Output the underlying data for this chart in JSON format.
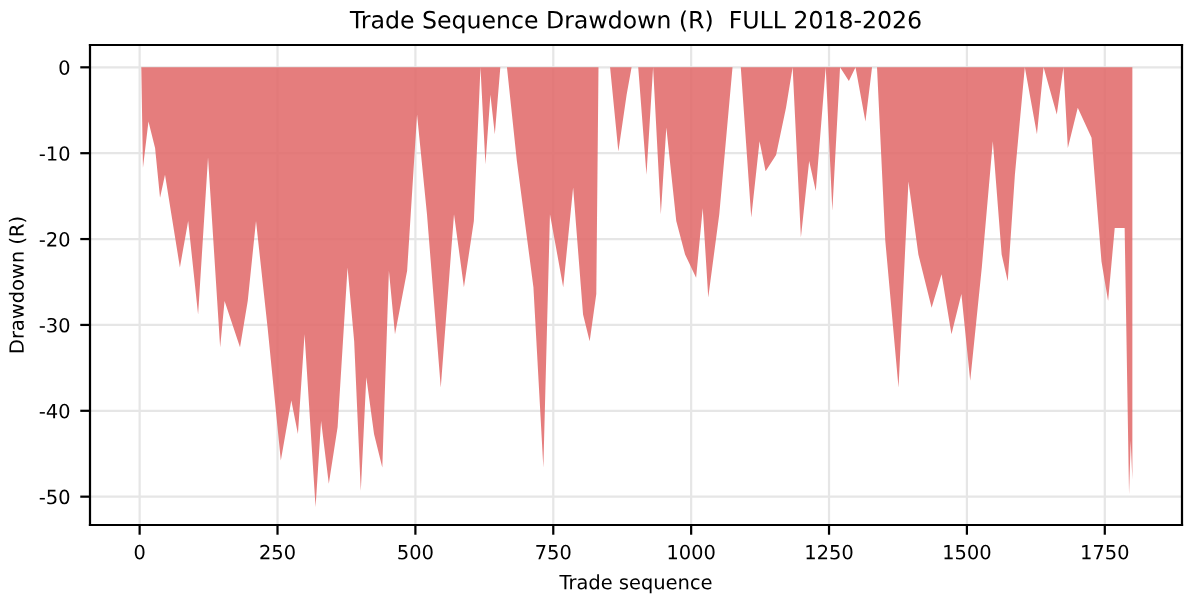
{
  "chart_data": {
    "type": "area",
    "title": "Trade Sequence Drawdown (R)  FULL 2018-2026",
    "xlabel": "Trade sequence",
    "ylabel": "Drawdown (R)",
    "x": [
      3,
      6,
      16,
      28,
      37,
      46,
      73,
      88,
      106,
      124,
      146,
      154,
      182,
      196,
      211,
      232,
      256,
      275,
      287,
      299,
      319,
      329,
      343,
      359,
      377,
      389,
      401,
      411,
      425,
      440,
      452,
      463,
      485,
      503,
      521,
      546,
      570,
      588,
      606,
      618,
      627,
      636,
      644,
      654,
      666,
      684,
      714,
      732,
      744,
      768,
      786,
      804,
      816,
      828,
      832,
      853,
      868,
      883,
      892,
      904,
      919,
      931,
      945,
      955,
      973,
      989,
      1009,
      1021,
      1031,
      1051,
      1075,
      1090,
      1109,
      1124,
      1135,
      1154,
      1172,
      1184,
      1199,
      1214,
      1226,
      1244,
      1256,
      1270,
      1286,
      1298,
      1316,
      1328,
      1337,
      1352,
      1376,
      1394,
      1412,
      1436,
      1454,
      1472,
      1490,
      1506,
      1527,
      1547,
      1563,
      1574,
      1587,
      1605,
      1627,
      1639,
      1663,
      1675,
      1683,
      1701,
      1726,
      1744,
      1756,
      1768,
      1786,
      1794,
      1797,
      1800
    ],
    "series": [
      {
        "color": "#e06666",
        "values": [
          0,
          -11.7,
          -6.3,
          -9.4,
          -15.2,
          -12.5,
          -23.3,
          -17.9,
          -28.8,
          -10.5,
          -32.6,
          -27.2,
          -32.6,
          -27.2,
          -17.9,
          -30.3,
          -45.8,
          -38.8,
          -42.7,
          -31.1,
          -51.2,
          -41.2,
          -48.5,
          -41.9,
          -23.3,
          -31.9,
          -49.3,
          -36.1,
          -42.7,
          -46.6,
          -23.7,
          -31.1,
          -23.7,
          -5.5,
          -17.1,
          -37.3,
          -17.1,
          -25.6,
          -17.9,
          0,
          -11.3,
          -3.2,
          -7.8,
          0,
          0,
          -10.9,
          -25.6,
          -46.6,
          -17.1,
          -25.6,
          -14,
          -28.8,
          -31.9,
          -26.4,
          0,
          0,
          -9.8,
          -3.2,
          0,
          0,
          -12.5,
          0,
          -17.1,
          -7,
          -17.9,
          -21.8,
          -24.5,
          -16.4,
          -26.8,
          -17.1,
          0,
          0,
          -17.5,
          -8.6,
          -12.1,
          -10.2,
          -4.7,
          0,
          -19.8,
          -10.9,
          -14.4,
          0,
          -16.7,
          0,
          -1.6,
          0,
          -6.3,
          0,
          0,
          -20.2,
          -37.3,
          -13.3,
          -21.8,
          -28,
          -24.1,
          -31.1,
          -26.4,
          -36.5,
          -23.3,
          -8.6,
          -21.8,
          -24.9,
          -12.5,
          0,
          -7.8,
          0,
          -5.5,
          0,
          -9.4,
          -4.7,
          -8.2,
          -22.6,
          -27.2,
          -18.7,
          -18.7,
          -49.7,
          -43.5,
          -48
        ]
      }
    ],
    "xlim": [
      -90,
      1890
    ],
    "ylim": [
      -53.3,
      2.6
    ],
    "xticks": [
      0,
      250,
      500,
      750,
      1000,
      1250,
      1500,
      1750
    ],
    "yticks": [
      0,
      -10,
      -20,
      -30,
      -40,
      -50
    ],
    "grid": true
  }
}
